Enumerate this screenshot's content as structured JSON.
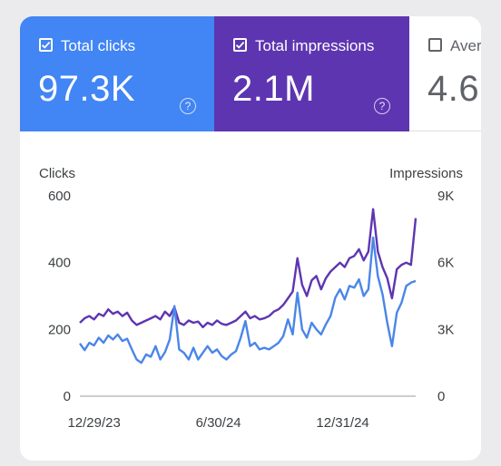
{
  "metrics": {
    "clicks": {
      "label": "Total clicks",
      "value": "97.3K",
      "checked": true,
      "color": "#4285f4"
    },
    "impressions": {
      "label": "Total impressions",
      "value": "2.1M",
      "checked": true,
      "color": "#5e35b1"
    },
    "ctr": {
      "label": "Aver",
      "value": "4.6",
      "checked": false
    }
  },
  "help_icon": "question-circle-icon",
  "chart_data": {
    "type": "line",
    "ylabel_left": "Clicks",
    "ylabel_right": "Impressions",
    "left_ticks": [
      "600",
      "400",
      "200",
      "0"
    ],
    "right_ticks": [
      "9K",
      "6K",
      "3K",
      "0"
    ],
    "left_range": [
      0,
      600
    ],
    "right_range": [
      0,
      9000
    ],
    "x_ticks": [
      "12/29/23",
      "6/30/24",
      "12/31/24"
    ],
    "x_range": [
      "2023-12-08",
      "2025-04-18"
    ],
    "grid": false,
    "series": [
      {
        "name": "Clicks",
        "axis": "left",
        "color": "#4a86e8",
        "points": [
          [
            "2023-12-08",
            158
          ],
          [
            "2023-12-15",
            138
          ],
          [
            "2023-12-22",
            160
          ],
          [
            "2023-12-29",
            152
          ],
          [
            "2024-01-05",
            175
          ],
          [
            "2024-01-12",
            160
          ],
          [
            "2024-01-19",
            182
          ],
          [
            "2024-01-26",
            170
          ],
          [
            "2024-02-02",
            185
          ],
          [
            "2024-02-09",
            165
          ],
          [
            "2024-02-16",
            172
          ],
          [
            "2024-02-23",
            140
          ],
          [
            "2024-03-01",
            110
          ],
          [
            "2024-03-08",
            100
          ],
          [
            "2024-03-15",
            125
          ],
          [
            "2024-03-22",
            118
          ],
          [
            "2024-03-29",
            150
          ],
          [
            "2024-04-05",
            110
          ],
          [
            "2024-04-12",
            132
          ],
          [
            "2024-04-19",
            170
          ],
          [
            "2024-04-26",
            270
          ],
          [
            "2024-05-03",
            140
          ],
          [
            "2024-05-10",
            130
          ],
          [
            "2024-05-17",
            110
          ],
          [
            "2024-05-24",
            145
          ],
          [
            "2024-05-31",
            110
          ],
          [
            "2024-06-07",
            130
          ],
          [
            "2024-06-14",
            150
          ],
          [
            "2024-06-21",
            130
          ],
          [
            "2024-06-28",
            140
          ],
          [
            "2024-07-05",
            120
          ],
          [
            "2024-07-12",
            110
          ],
          [
            "2024-07-19",
            125
          ],
          [
            "2024-07-26",
            135
          ],
          [
            "2024-08-02",
            175
          ],
          [
            "2024-08-09",
            225
          ],
          [
            "2024-08-16",
            150
          ],
          [
            "2024-08-23",
            160
          ],
          [
            "2024-08-30",
            140
          ],
          [
            "2024-09-06",
            145
          ],
          [
            "2024-09-13",
            140
          ],
          [
            "2024-09-20",
            150
          ],
          [
            "2024-09-27",
            160
          ],
          [
            "2024-10-04",
            180
          ],
          [
            "2024-10-11",
            230
          ],
          [
            "2024-10-18",
            185
          ],
          [
            "2024-10-25",
            310
          ],
          [
            "2024-11-01",
            200
          ],
          [
            "2024-11-08",
            175
          ],
          [
            "2024-11-15",
            220
          ],
          [
            "2024-11-22",
            200
          ],
          [
            "2024-11-29",
            185
          ],
          [
            "2024-12-06",
            215
          ],
          [
            "2024-12-13",
            240
          ],
          [
            "2024-12-20",
            295
          ],
          [
            "2024-12-27",
            320
          ],
          [
            "2025-01-03",
            290
          ],
          [
            "2025-01-10",
            330
          ],
          [
            "2025-01-17",
            325
          ],
          [
            "2025-01-24",
            350
          ],
          [
            "2025-01-31",
            300
          ],
          [
            "2025-02-07",
            320
          ],
          [
            "2025-02-14",
            475
          ],
          [
            "2025-02-21",
            360
          ],
          [
            "2025-02-28",
            305
          ],
          [
            "2025-03-07",
            220
          ],
          [
            "2025-03-14",
            150
          ],
          [
            "2025-03-21",
            250
          ],
          [
            "2025-03-28",
            280
          ],
          [
            "2025-04-04",
            330
          ],
          [
            "2025-04-11",
            340
          ],
          [
            "2025-04-18",
            345
          ]
        ]
      },
      {
        "name": "Impressions",
        "axis": "right",
        "color": "#5e35b1",
        "points": [
          [
            "2023-12-08",
            3300
          ],
          [
            "2023-12-15",
            3500
          ],
          [
            "2023-12-22",
            3600
          ],
          [
            "2023-12-29",
            3450
          ],
          [
            "2024-01-05",
            3700
          ],
          [
            "2024-01-12",
            3600
          ],
          [
            "2024-01-19",
            3900
          ],
          [
            "2024-01-26",
            3700
          ],
          [
            "2024-02-02",
            3800
          ],
          [
            "2024-02-09",
            3600
          ],
          [
            "2024-02-16",
            3750
          ],
          [
            "2024-02-23",
            3400
          ],
          [
            "2024-03-01",
            3200
          ],
          [
            "2024-03-08",
            3300
          ],
          [
            "2024-03-15",
            3400
          ],
          [
            "2024-03-22",
            3500
          ],
          [
            "2024-03-29",
            3600
          ],
          [
            "2024-04-05",
            3450
          ],
          [
            "2024-04-12",
            3800
          ],
          [
            "2024-04-19",
            3600
          ],
          [
            "2024-04-26",
            4000
          ],
          [
            "2024-05-03",
            3300
          ],
          [
            "2024-05-10",
            3200
          ],
          [
            "2024-05-17",
            3400
          ],
          [
            "2024-05-24",
            3300
          ],
          [
            "2024-05-31",
            3350
          ],
          [
            "2024-06-07",
            3100
          ],
          [
            "2024-06-14",
            3300
          ],
          [
            "2024-06-21",
            3200
          ],
          [
            "2024-06-28",
            3400
          ],
          [
            "2024-07-05",
            3250
          ],
          [
            "2024-07-12",
            3200
          ],
          [
            "2024-07-19",
            3300
          ],
          [
            "2024-07-26",
            3400
          ],
          [
            "2024-08-02",
            3600
          ],
          [
            "2024-08-09",
            3800
          ],
          [
            "2024-08-16",
            3500
          ],
          [
            "2024-08-23",
            3600
          ],
          [
            "2024-08-30",
            3450
          ],
          [
            "2024-09-06",
            3500
          ],
          [
            "2024-09-13",
            3600
          ],
          [
            "2024-09-20",
            3800
          ],
          [
            "2024-09-27",
            3900
          ],
          [
            "2024-10-04",
            4100
          ],
          [
            "2024-10-11",
            4400
          ],
          [
            "2024-10-18",
            4700
          ],
          [
            "2024-10-25",
            6200
          ],
          [
            "2024-11-01",
            5000
          ],
          [
            "2024-11-08",
            4500
          ],
          [
            "2024-11-15",
            5200
          ],
          [
            "2024-11-22",
            5400
          ],
          [
            "2024-11-29",
            4800
          ],
          [
            "2024-12-06",
            5300
          ],
          [
            "2024-12-13",
            5600
          ],
          [
            "2024-12-20",
            5800
          ],
          [
            "2024-12-27",
            6000
          ],
          [
            "2025-01-03",
            5800
          ],
          [
            "2025-01-10",
            6200
          ],
          [
            "2025-01-17",
            6300
          ],
          [
            "2025-01-24",
            6600
          ],
          [
            "2025-01-31",
            6100
          ],
          [
            "2025-02-07",
            6500
          ],
          [
            "2025-02-14",
            8400
          ],
          [
            "2025-02-21",
            6500
          ],
          [
            "2025-02-28",
            5800
          ],
          [
            "2025-03-07",
            5300
          ],
          [
            "2025-03-14",
            4400
          ],
          [
            "2025-03-21",
            5700
          ],
          [
            "2025-03-28",
            5900
          ],
          [
            "2025-04-04",
            6000
          ],
          [
            "2025-04-11",
            5900
          ],
          [
            "2025-04-18",
            8000
          ]
        ]
      }
    ]
  }
}
